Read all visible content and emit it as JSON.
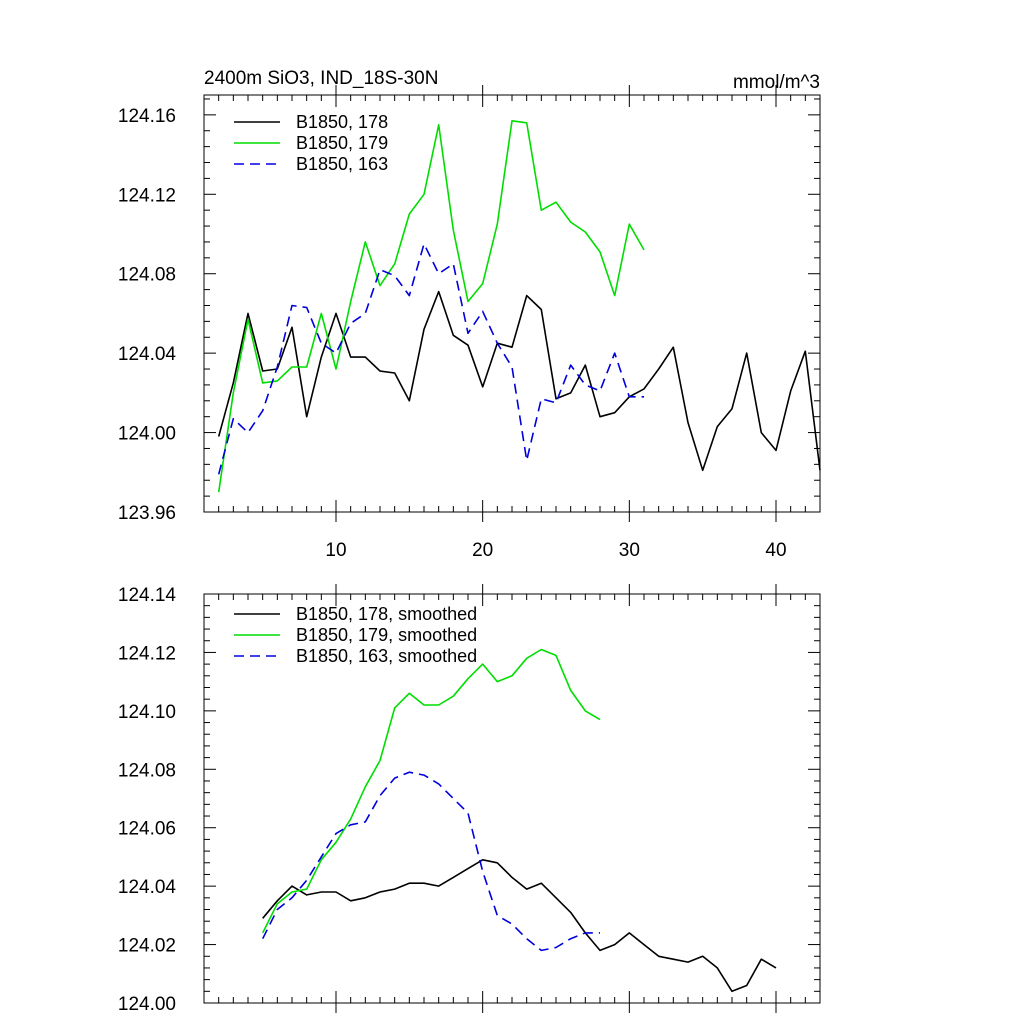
{
  "chart_data": [
    {
      "type": "line",
      "title": "2400m SiO3, IND_18S-30N",
      "units": "mmol/m^3",
      "xlabel": "",
      "ylabel": "",
      "xlim": [
        1,
        43
      ],
      "ylim": [
        123.96,
        124.17
      ],
      "xticks": [
        10,
        20,
        30,
        40
      ],
      "xtick_labels": [
        "10",
        "20",
        "30",
        "40"
      ],
      "yticks": [
        123.96,
        124.0,
        124.04,
        124.08,
        124.12,
        124.16
      ],
      "ytick_labels": [
        "123.96",
        "124.00",
        "124.04",
        "124.08",
        "124.12",
        "124.16"
      ],
      "grid": false,
      "legend_position": "top-left",
      "series": [
        {
          "name": "B1850, 178",
          "color": "#000000",
          "dash": "solid",
          "x": [
            2,
            3,
            4,
            5,
            6,
            7,
            8,
            9,
            10,
            11,
            12,
            13,
            14,
            15,
            16,
            17,
            18,
            19,
            20,
            21,
            22,
            23,
            24,
            25,
            26,
            27,
            28,
            29,
            30,
            31,
            32,
            33,
            34,
            35,
            36,
            37,
            38,
            39,
            40,
            41,
            42,
            43
          ],
          "values": [
            123.998,
            124.025,
            124.06,
            124.031,
            124.032,
            124.053,
            124.008,
            124.038,
            124.06,
            124.038,
            124.038,
            124.031,
            124.03,
            124.016,
            124.052,
            124.071,
            124.049,
            124.044,
            124.023,
            124.045,
            124.043,
            124.069,
            124.062,
            124.017,
            124.02,
            124.034,
            124.008,
            124.01,
            124.018,
            124.022,
            124.032,
            124.043,
            124.005,
            123.981,
            124.003,
            124.012,
            124.04,
            124.0,
            123.991,
            124.021,
            124.041,
            123.981
          ]
        },
        {
          "name": "B1850, 179",
          "color": "#00dd00",
          "dash": "solid",
          "x": [
            2,
            3,
            4,
            5,
            6,
            7,
            8,
            9,
            10,
            11,
            12,
            13,
            14,
            15,
            16,
            17,
            18,
            19,
            20,
            21,
            22,
            23,
            24,
            25,
            26,
            27,
            28,
            29,
            30,
            31
          ],
          "values": [
            123.97,
            124.02,
            124.057,
            124.025,
            124.026,
            124.033,
            124.033,
            124.06,
            124.032,
            124.066,
            124.096,
            124.074,
            124.085,
            124.11,
            124.12,
            124.155,
            124.102,
            124.066,
            124.075,
            124.105,
            124.157,
            124.156,
            124.112,
            124.116,
            124.106,
            124.101,
            124.091,
            124.069,
            124.105,
            124.092
          ]
        },
        {
          "name": "B1850, 163",
          "color": "#0000dd",
          "dash": "dashed",
          "x": [
            2,
            3,
            4,
            5,
            6,
            7,
            8,
            9,
            10,
            11,
            12,
            13,
            14,
            15,
            16,
            17,
            18,
            19,
            20,
            21,
            22,
            23,
            24,
            25,
            26,
            27,
            28,
            29,
            30,
            31
          ],
          "values": [
            123.979,
            124.007,
            124.0,
            124.011,
            124.033,
            124.064,
            124.063,
            124.045,
            124.04,
            124.055,
            124.06,
            124.082,
            124.079,
            124.069,
            124.095,
            124.08,
            124.085,
            124.05,
            124.061,
            124.045,
            124.033,
            123.986,
            124.017,
            124.015,
            124.034,
            124.024,
            124.021,
            124.04,
            124.018,
            124.018
          ]
        }
      ]
    },
    {
      "type": "line",
      "title": "",
      "xlabel": "",
      "ylabel": "",
      "xlim": [
        1,
        43
      ],
      "ylim": [
        124.0,
        124.14
      ],
      "xticks": [
        10,
        20,
        30,
        40
      ],
      "xtick_labels": [],
      "yticks": [
        124.0,
        124.02,
        124.04,
        124.06,
        124.08,
        124.1,
        124.12,
        124.14
      ],
      "ytick_labels": [
        "124.00",
        "124.02",
        "124.04",
        "124.06",
        "124.08",
        "124.10",
        "124.12",
        "124.14"
      ],
      "grid": false,
      "legend_position": "top-left",
      "series": [
        {
          "name": "B1850, 178, smoothed",
          "color": "#000000",
          "dash": "solid",
          "x": [
            5,
            6,
            7,
            8,
            9,
            10,
            11,
            12,
            13,
            14,
            15,
            16,
            17,
            18,
            19,
            20,
            21,
            22,
            23,
            24,
            25,
            26,
            27,
            28,
            29,
            30,
            31,
            32,
            33,
            34,
            35,
            36,
            37,
            38,
            39,
            40
          ],
          "values": [
            124.029,
            124.035,
            124.04,
            124.037,
            124.038,
            124.038,
            124.035,
            124.036,
            124.038,
            124.039,
            124.041,
            124.041,
            124.04,
            124.043,
            124.046,
            124.049,
            124.048,
            124.043,
            124.039,
            124.041,
            124.036,
            124.031,
            124.024,
            124.018,
            124.02,
            124.024,
            124.02,
            124.016,
            124.015,
            124.014,
            124.016,
            124.012,
            124.004,
            124.006,
            124.015,
            124.012
          ]
        },
        {
          "name": "B1850, 179, smoothed",
          "color": "#00dd00",
          "dash": "solid",
          "x": [
            5,
            6,
            7,
            8,
            9,
            10,
            11,
            12,
            13,
            14,
            15,
            16,
            17,
            18,
            19,
            20,
            21,
            22,
            23,
            24,
            25,
            26,
            27,
            28
          ],
          "values": [
            124.024,
            124.034,
            124.038,
            124.039,
            124.049,
            124.055,
            124.063,
            124.074,
            124.083,
            124.101,
            124.106,
            124.102,
            124.102,
            124.105,
            124.111,
            124.116,
            124.11,
            124.112,
            124.118,
            124.121,
            124.119,
            124.107,
            124.1,
            124.097
          ]
        },
        {
          "name": "B1850, 163, smoothed",
          "color": "#0000dd",
          "dash": "dashed",
          "x": [
            5,
            6,
            7,
            8,
            9,
            10,
            11,
            12,
            13,
            14,
            15,
            16,
            17,
            18,
            19,
            20,
            21,
            22,
            23,
            24,
            25,
            26,
            27,
            28
          ],
          "values": [
            124.022,
            124.032,
            124.036,
            124.042,
            124.05,
            124.058,
            124.061,
            124.062,
            124.071,
            124.077,
            124.079,
            124.078,
            124.075,
            124.07,
            124.065,
            124.045,
            124.03,
            124.027,
            124.022,
            124.018,
            124.019,
            124.022,
            124.024,
            124.024
          ]
        }
      ]
    }
  ]
}
